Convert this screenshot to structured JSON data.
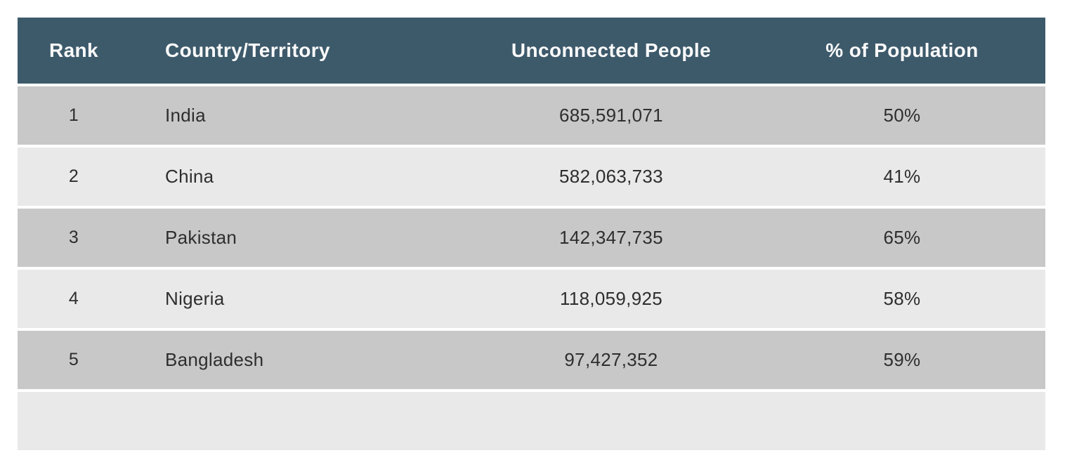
{
  "table": {
    "columns": {
      "rank": "Rank",
      "country": "Country/Territory",
      "unconnected": "Unconnected People",
      "percent": "% of Population"
    },
    "rows": [
      {
        "rank": "1",
        "country": "India",
        "unconnected": "685,591,071",
        "percent": "50%"
      },
      {
        "rank": "2",
        "country": "China",
        "unconnected": "582,063,733",
        "percent": "41%"
      },
      {
        "rank": "3",
        "country": "Pakistan",
        "unconnected": "142,347,735",
        "percent": "65%"
      },
      {
        "rank": "4",
        "country": "Nigeria",
        "unconnected": "118,059,925",
        "percent": "58%"
      },
      {
        "rank": "5",
        "country": "Bangladesh",
        "unconnected": "97,427,352",
        "percent": "59%"
      }
    ],
    "partial_row_visible": true
  },
  "colors": {
    "header_bg": "#3d5a6b",
    "header_text": "#fafafa",
    "row_stripe_dark": "#c8c8c8",
    "row_stripe_light": "#e9e9e9",
    "cell_text": "#2e2e2e",
    "page_bg": "#ffffff"
  }
}
